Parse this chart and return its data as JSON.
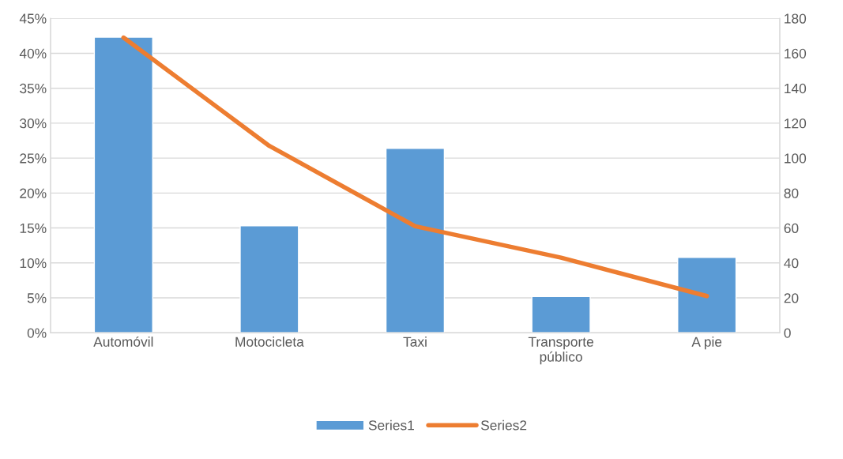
{
  "chart_data": {
    "type": "bar",
    "categories": [
      "Automóvil",
      "Motocicleta",
      "Taxi",
      "Transporte\npúblico",
      "A pie"
    ],
    "series": [
      {
        "name": "Series1",
        "color": "#5b9bd5",
        "values": [
          42.3,
          15.3,
          26.4,
          5.2,
          10.8
        ]
      },
      {
        "name": "Series2",
        "type": "line",
        "axis": "y2",
        "color": "#ed7d31",
        "values": [
          169,
          107,
          61,
          43,
          21
        ]
      }
    ],
    "ylim": [
      0,
      45
    ],
    "yticks": [
      {
        "value": 0,
        "label": "0%"
      },
      {
        "value": 5,
        "label": "5%"
      },
      {
        "value": 10,
        "label": "10%"
      },
      {
        "value": 15,
        "label": "15%"
      },
      {
        "value": 20,
        "label": "20%"
      },
      {
        "value": 25,
        "label": "25%"
      },
      {
        "value": 30,
        "label": "30%"
      },
      {
        "value": 35,
        "label": "35%"
      },
      {
        "value": 40,
        "label": "40%"
      },
      {
        "value": 45,
        "label": "45%"
      }
    ],
    "y2lim": [
      0,
      180
    ],
    "y2ticks": [
      0,
      20,
      40,
      60,
      80,
      100,
      120,
      140,
      160,
      180
    ],
    "grid": "y",
    "legend": "bottom",
    "marker": "none",
    "line_style": "solid"
  }
}
